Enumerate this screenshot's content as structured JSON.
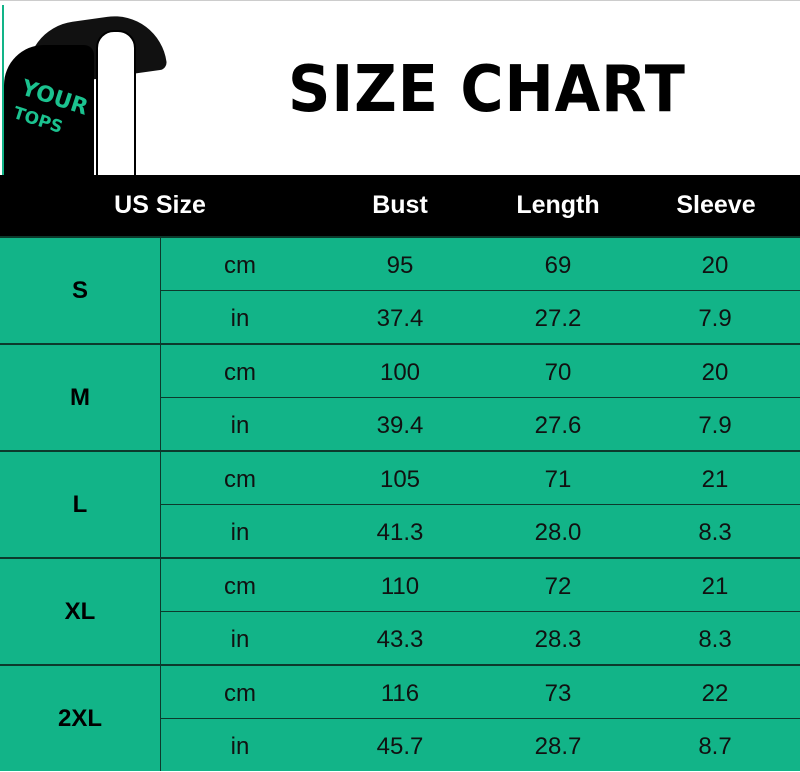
{
  "title": "SIZE CHART",
  "logo_text": [
    "YOUR",
    "TOPS"
  ],
  "colors": {
    "row_background": "#12b488",
    "header_background": "#000000",
    "logo_text": "#1bc28f"
  },
  "columns": [
    "US Size",
    "Bust",
    "Length",
    "Sleeve"
  ],
  "rows": [
    {
      "size": "S",
      "cm": {
        "unit": "cm",
        "bust": "95",
        "length": "69",
        "sleeve": "20"
      },
      "in": {
        "unit": "in",
        "bust": "37.4",
        "length": "27.2",
        "sleeve": "7.9"
      }
    },
    {
      "size": "M",
      "cm": {
        "unit": "cm",
        "bust": "100",
        "length": "70",
        "sleeve": "20"
      },
      "in": {
        "unit": "in",
        "bust": "39.4",
        "length": "27.6",
        "sleeve": "7.9"
      }
    },
    {
      "size": "L",
      "cm": {
        "unit": "cm",
        "bust": "105",
        "length": "71",
        "sleeve": "21"
      },
      "in": {
        "unit": "in",
        "bust": "41.3",
        "length": "28.0",
        "sleeve": "8.3"
      }
    },
    {
      "size": "XL",
      "cm": {
        "unit": "cm",
        "bust": "110",
        "length": "72",
        "sleeve": "21"
      },
      "in": {
        "unit": "in",
        "bust": "43.3",
        "length": "28.3",
        "sleeve": "8.3"
      }
    },
    {
      "size": "2XL",
      "cm": {
        "unit": "cm",
        "bust": "116",
        "length": "73",
        "sleeve": "22"
      },
      "in": {
        "unit": "in",
        "bust": "45.7",
        "length": "28.7",
        "sleeve": "8.7"
      }
    }
  ]
}
